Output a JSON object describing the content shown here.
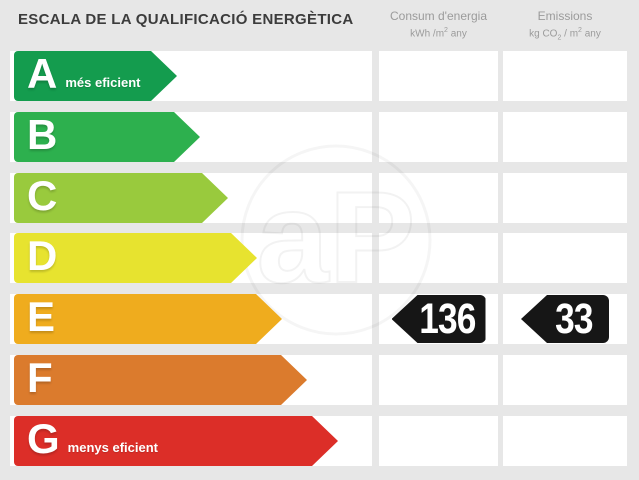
{
  "title": "ESCALA DE LA QUALIFICACIÓ ENERGÈTICA",
  "columns": {
    "consumption": {
      "title": "Consum d'energia",
      "unit_pre": "kWh /m",
      "unit_sup": "2",
      "unit_post": " any"
    },
    "emissions": {
      "title": "Emissions",
      "unit_pre": "kg CO",
      "unit_sub": "2",
      "unit_mid": " / m",
      "unit_sup": "2",
      "unit_post": " any"
    }
  },
  "scale": [
    {
      "letter": "A",
      "label": "més eficient",
      "color": "#149c4e",
      "arrow_width": 163
    },
    {
      "letter": "B",
      "label": "",
      "color": "#2db04e",
      "arrow_width": 186
    },
    {
      "letter": "C",
      "label": "",
      "color": "#99ca3d",
      "arrow_width": 214
    },
    {
      "letter": "D",
      "label": "",
      "color": "#e7e32f",
      "arrow_width": 243
    },
    {
      "letter": "E",
      "label": "",
      "color": "#efac1e",
      "arrow_width": 268
    },
    {
      "letter": "F",
      "label": "",
      "color": "#db7b2d",
      "arrow_width": 293
    },
    {
      "letter": "G",
      "label": "menys eficient",
      "color": "#dc2e28",
      "arrow_width": 324
    }
  ],
  "rating": {
    "letter": "E",
    "consumption_value": "136",
    "emissions_value": "33"
  },
  "watermark": {
    "text": "aP"
  },
  "colors": {
    "background": "#e7e7e7",
    "row_band": "#ffffff",
    "badge": "#161616",
    "title_text": "#3c3c3c",
    "header_text": "#9b9b9b"
  },
  "chart_data": {
    "type": "bar",
    "title": "ESCALA DE LA QUALIFICACIÓ ENERGÈTICA",
    "categories": [
      "A",
      "B",
      "C",
      "D",
      "E",
      "F",
      "G"
    ],
    "category_colors": [
      "#149c4e",
      "#2db04e",
      "#99ca3d",
      "#e7e32f",
      "#efac1e",
      "#db7b2d",
      "#dc2e28"
    ],
    "category_annotations": {
      "A": "més eficient",
      "G": "menys eficient"
    },
    "rating": "E",
    "series": [
      {
        "name": "Consum d'energia (kWh/m2 any)",
        "values": [
          null,
          null,
          null,
          null,
          136,
          null,
          null
        ]
      },
      {
        "name": "Emissions (kg CO2/m2 any)",
        "values": [
          null,
          null,
          null,
          null,
          33,
          null,
          null
        ]
      }
    ],
    "legend_position": "top",
    "grid": false
  }
}
